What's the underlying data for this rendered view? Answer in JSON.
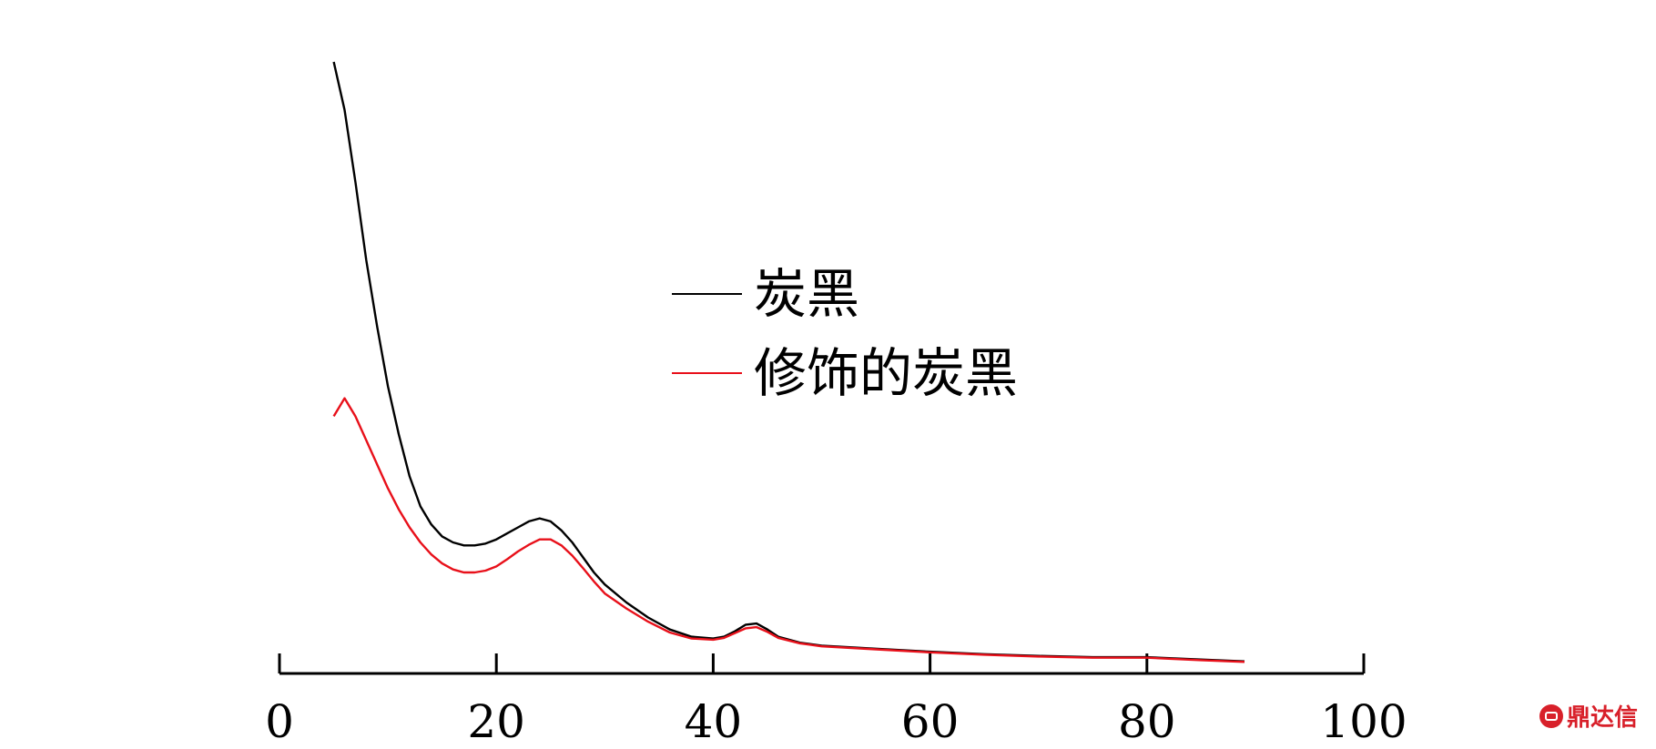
{
  "chart_data": {
    "type": "line",
    "title": "",
    "xlabel": "",
    "ylabel": "",
    "xlim": [
      0,
      100
    ],
    "xticks": [
      "0",
      "20",
      "40",
      "60",
      "80",
      "100"
    ],
    "grid": false,
    "legend_position": "center",
    "series": [
      {
        "name": "炭黑",
        "color": "#000000",
        "x": [
          5,
          6,
          7,
          8,
          9,
          10,
          11,
          12,
          13,
          14,
          15,
          16,
          17,
          18,
          19,
          20,
          21,
          22,
          23,
          24,
          25,
          26,
          27,
          28,
          29,
          30,
          32,
          34,
          36,
          38,
          40,
          41,
          42,
          43,
          44,
          45,
          46,
          48,
          50,
          55,
          60,
          65,
          70,
          75,
          80,
          85,
          89
        ],
        "y": [
          100,
          92,
          80,
          67,
          56,
          46,
          38,
          31,
          26,
          23,
          21,
          20,
          19.5,
          19.5,
          19.8,
          20.5,
          21.5,
          22.5,
          23.5,
          24,
          23.5,
          22,
          20,
          17.5,
          15,
          13,
          10,
          7.5,
          5.5,
          4.3,
          4,
          4.3,
          5.2,
          6.3,
          6.5,
          5.5,
          4.3,
          3.3,
          2.8,
          2.3,
          1.8,
          1.4,
          1.1,
          0.9,
          0.9,
          0.5,
          0.2
        ]
      },
      {
        "name": "修饰的炭黑",
        "color": "#e8101a",
        "x": [
          5,
          6,
          7,
          8,
          9,
          10,
          11,
          12,
          13,
          14,
          15,
          16,
          17,
          18,
          19,
          20,
          21,
          22,
          23,
          24,
          25,
          26,
          27,
          28,
          29,
          30,
          32,
          34,
          36,
          38,
          40,
          41,
          42,
          43,
          44,
          45,
          46,
          48,
          50,
          55,
          60,
          65,
          70,
          75,
          80,
          85,
          89
        ],
        "y": [
          41,
          44,
          41,
          37,
          33,
          29,
          25.5,
          22.5,
          20,
          18,
          16.5,
          15.5,
          15,
          15,
          15.3,
          16,
          17.2,
          18.5,
          19.6,
          20.5,
          20.5,
          19.5,
          17.8,
          15.7,
          13.5,
          11.5,
          9,
          6.8,
          5,
          4,
          3.8,
          4.1,
          4.9,
          5.7,
          5.9,
          5.1,
          4.1,
          3.2,
          2.7,
          2.2,
          1.7,
          1.3,
          1.0,
          0.8,
          0.8,
          0.4,
          0.1
        ]
      }
    ]
  },
  "watermark": {
    "text": "鼎达信",
    "color": "#d8202a"
  }
}
